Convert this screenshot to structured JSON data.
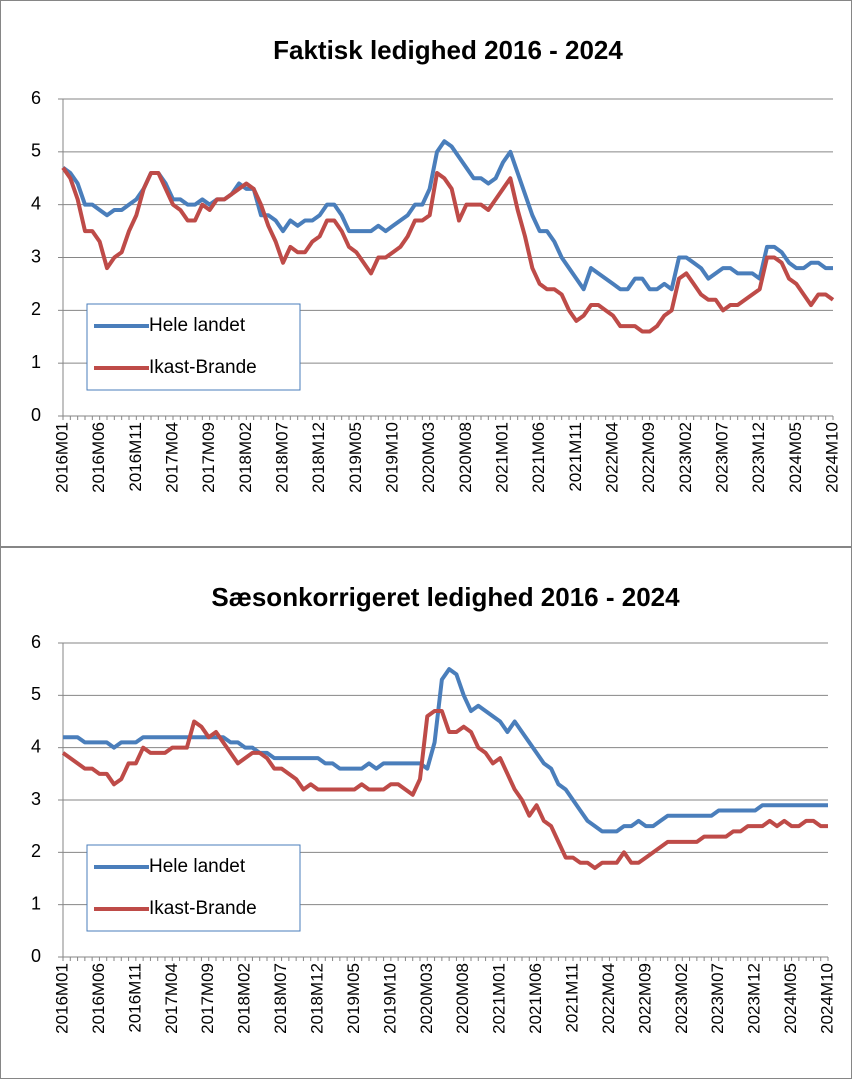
{
  "chart_data": [
    {
      "type": "line",
      "title": "Faktisk ledighed 2016 - 2024",
      "categories": [
        "2016M01",
        null,
        null,
        null,
        null,
        "2016M06",
        null,
        null,
        null,
        null,
        "2016M11",
        null,
        null,
        null,
        null,
        "2017M04",
        null,
        null,
        null,
        null,
        "2017M09",
        null,
        null,
        null,
        null,
        "2018M02",
        null,
        null,
        null,
        null,
        "2018M07",
        null,
        null,
        null,
        null,
        "2018M12",
        null,
        null,
        null,
        null,
        "2019M05",
        null,
        null,
        null,
        null,
        "2019M10",
        null,
        null,
        null,
        null,
        "2020M03",
        null,
        null,
        null,
        null,
        "2020M08",
        null,
        null,
        null,
        null,
        "2021M01",
        null,
        null,
        null,
        null,
        "2021M06",
        null,
        null,
        null,
        null,
        "2021M11",
        null,
        null,
        null,
        null,
        "2022M04",
        null,
        null,
        null,
        null,
        "2022M09",
        null,
        null,
        null,
        null,
        "2023M02",
        null,
        null,
        null,
        null,
        "2023M07",
        null,
        null,
        null,
        null,
        "2023M12",
        null,
        null,
        null,
        null,
        "2024M05",
        null,
        null,
        null,
        null,
        "2024M10"
      ],
      "series": [
        {
          "name": "Hele landet",
          "color": "#4a7ebb",
          "values": [
            4.7,
            4.6,
            4.4,
            4.0,
            4.0,
            3.9,
            3.8,
            3.9,
            3.9,
            4.0,
            4.1,
            4.3,
            4.6,
            4.6,
            4.4,
            4.1,
            4.1,
            4.0,
            4.0,
            4.1,
            4.0,
            4.1,
            4.1,
            4.2,
            4.4,
            4.3,
            4.3,
            3.8,
            3.8,
            3.7,
            3.5,
            3.7,
            3.6,
            3.7,
            3.7,
            3.8,
            4.0,
            4.0,
            3.8,
            3.5,
            3.5,
            3.5,
            3.5,
            3.6,
            3.5,
            3.6,
            3.7,
            3.8,
            4.0,
            4.0,
            4.3,
            5.0,
            5.2,
            5.1,
            4.9,
            4.7,
            4.5,
            4.5,
            4.4,
            4.5,
            4.8,
            5.0,
            4.6,
            4.2,
            3.8,
            3.5,
            3.5,
            3.3,
            3.0,
            2.8,
            2.6,
            2.4,
            2.8,
            2.7,
            2.6,
            2.5,
            2.4,
            2.4,
            2.6,
            2.6,
            2.4,
            2.4,
            2.5,
            2.4,
            3.0,
            3.0,
            2.9,
            2.8,
            2.6,
            2.7,
            2.8,
            2.8,
            2.7,
            2.7,
            2.7,
            2.6,
            3.2,
            3.2,
            3.1,
            2.9,
            2.8,
            2.8,
            2.9,
            2.9,
            2.8,
            2.8
          ]
        },
        {
          "name": "Ikast-Brande",
          "color": "#be4b48",
          "values": [
            4.7,
            4.5,
            4.1,
            3.5,
            3.5,
            3.3,
            2.8,
            3.0,
            3.1,
            3.5,
            3.8,
            4.3,
            4.6,
            4.6,
            4.3,
            4.0,
            3.9,
            3.7,
            3.7,
            4.0,
            3.9,
            4.1,
            4.1,
            4.2,
            4.3,
            4.4,
            4.3,
            4.0,
            3.6,
            3.3,
            2.9,
            3.2,
            3.1,
            3.1,
            3.3,
            3.4,
            3.7,
            3.7,
            3.5,
            3.2,
            3.1,
            2.9,
            2.7,
            3.0,
            3.0,
            3.1,
            3.2,
            3.4,
            3.7,
            3.7,
            3.8,
            4.6,
            4.5,
            4.3,
            3.7,
            4.0,
            4.0,
            4.0,
            3.9,
            4.1,
            4.3,
            4.5,
            3.9,
            3.4,
            2.8,
            2.5,
            2.4,
            2.4,
            2.3,
            2.0,
            1.8,
            1.9,
            2.1,
            2.1,
            2.0,
            1.9,
            1.7,
            1.7,
            1.7,
            1.6,
            1.6,
            1.7,
            1.9,
            2.0,
            2.6,
            2.7,
            2.5,
            2.3,
            2.2,
            2.2,
            2.0,
            2.1,
            2.1,
            2.2,
            2.3,
            2.4,
            3.0,
            3.0,
            2.9,
            2.6,
            2.5,
            2.3,
            2.1,
            2.3,
            2.3,
            2.2
          ]
        }
      ],
      "ylim": [
        0,
        6
      ],
      "yticks": [
        0,
        1,
        2,
        3,
        4,
        5,
        6
      ],
      "grid": true,
      "legend": "lower left"
    },
    {
      "type": "line",
      "title": "Sæsonkorrigeret ledighed 2016 - 2024",
      "categories": [
        "2016M01",
        null,
        null,
        null,
        null,
        "2016M06",
        null,
        null,
        null,
        null,
        "2016M11",
        null,
        null,
        null,
        null,
        "2017M04",
        null,
        null,
        null,
        null,
        "2017M09",
        null,
        null,
        null,
        null,
        "2018M02",
        null,
        null,
        null,
        null,
        "2018M07",
        null,
        null,
        null,
        null,
        "2018M12",
        null,
        null,
        null,
        null,
        "2019M05",
        null,
        null,
        null,
        null,
        "2019M10",
        null,
        null,
        null,
        null,
        "2020M03",
        null,
        null,
        null,
        null,
        "2020M08",
        null,
        null,
        null,
        null,
        "2021M01",
        null,
        null,
        null,
        null,
        "2021M06",
        null,
        null,
        null,
        null,
        "2021M11",
        null,
        null,
        null,
        null,
        "2022M04",
        null,
        null,
        null,
        null,
        "2022M09",
        null,
        null,
        null,
        null,
        "2023M02",
        null,
        null,
        null,
        null,
        "2023M07",
        null,
        null,
        null,
        null,
        "2023M12",
        null,
        null,
        null,
        null,
        "2024M05",
        null,
        null,
        null,
        null,
        "2024M10"
      ],
      "series": [
        {
          "name": "Hele landet",
          "color": "#4a7ebb",
          "values": [
            4.2,
            4.2,
            4.2,
            4.1,
            4.1,
            4.1,
            4.1,
            4.0,
            4.1,
            4.1,
            4.1,
            4.2,
            4.2,
            4.2,
            4.2,
            4.2,
            4.2,
            4.2,
            4.2,
            4.2,
            4.2,
            4.2,
            4.2,
            4.1,
            4.1,
            4.0,
            4.0,
            3.9,
            3.9,
            3.8,
            3.8,
            3.8,
            3.8,
            3.8,
            3.8,
            3.8,
            3.7,
            3.7,
            3.6,
            3.6,
            3.6,
            3.6,
            3.7,
            3.6,
            3.7,
            3.7,
            3.7,
            3.7,
            3.7,
            3.7,
            3.6,
            4.1,
            5.3,
            5.5,
            5.4,
            5.0,
            4.7,
            4.8,
            4.7,
            4.6,
            4.5,
            4.3,
            4.5,
            4.3,
            4.1,
            3.9,
            3.7,
            3.6,
            3.3,
            3.2,
            3.0,
            2.8,
            2.6,
            2.5,
            2.4,
            2.4,
            2.4,
            2.5,
            2.5,
            2.6,
            2.5,
            2.5,
            2.6,
            2.7,
            2.7,
            2.7,
            2.7,
            2.7,
            2.7,
            2.7,
            2.8,
            2.8,
            2.8,
            2.8,
            2.8,
            2.8,
            2.9,
            2.9,
            2.9,
            2.9,
            2.9,
            2.9,
            2.9,
            2.9,
            2.9,
            2.9
          ]
        },
        {
          "name": "Ikast-Brande",
          "color": "#be4b48",
          "values": [
            3.9,
            3.8,
            3.7,
            3.6,
            3.6,
            3.5,
            3.5,
            3.3,
            3.4,
            3.7,
            3.7,
            4.0,
            3.9,
            3.9,
            3.9,
            4.0,
            4.0,
            4.0,
            4.5,
            4.4,
            4.2,
            4.3,
            4.1,
            3.9,
            3.7,
            3.8,
            3.9,
            3.9,
            3.8,
            3.6,
            3.6,
            3.5,
            3.4,
            3.2,
            3.3,
            3.2,
            3.2,
            3.2,
            3.2,
            3.2,
            3.2,
            3.3,
            3.2,
            3.2,
            3.2,
            3.3,
            3.3,
            3.2,
            3.1,
            3.4,
            4.6,
            4.7,
            4.7,
            4.3,
            4.3,
            4.4,
            4.3,
            4.0,
            3.9,
            3.7,
            3.8,
            3.5,
            3.2,
            3.0,
            2.7,
            2.9,
            2.6,
            2.5,
            2.2,
            1.9,
            1.9,
            1.8,
            1.8,
            1.7,
            1.8,
            1.8,
            1.8,
            2.0,
            1.8,
            1.8,
            1.9,
            2.0,
            2.1,
            2.2,
            2.2,
            2.2,
            2.2,
            2.2,
            2.3,
            2.3,
            2.3,
            2.3,
            2.4,
            2.4,
            2.5,
            2.5,
            2.5,
            2.6,
            2.5,
            2.6,
            2.5,
            2.5,
            2.6,
            2.6,
            2.5,
            2.5
          ]
        }
      ],
      "ylim": [
        0,
        6
      ],
      "yticks": [
        0,
        1,
        2,
        3,
        4,
        5,
        6
      ],
      "grid": true,
      "legend": "lower left"
    }
  ]
}
